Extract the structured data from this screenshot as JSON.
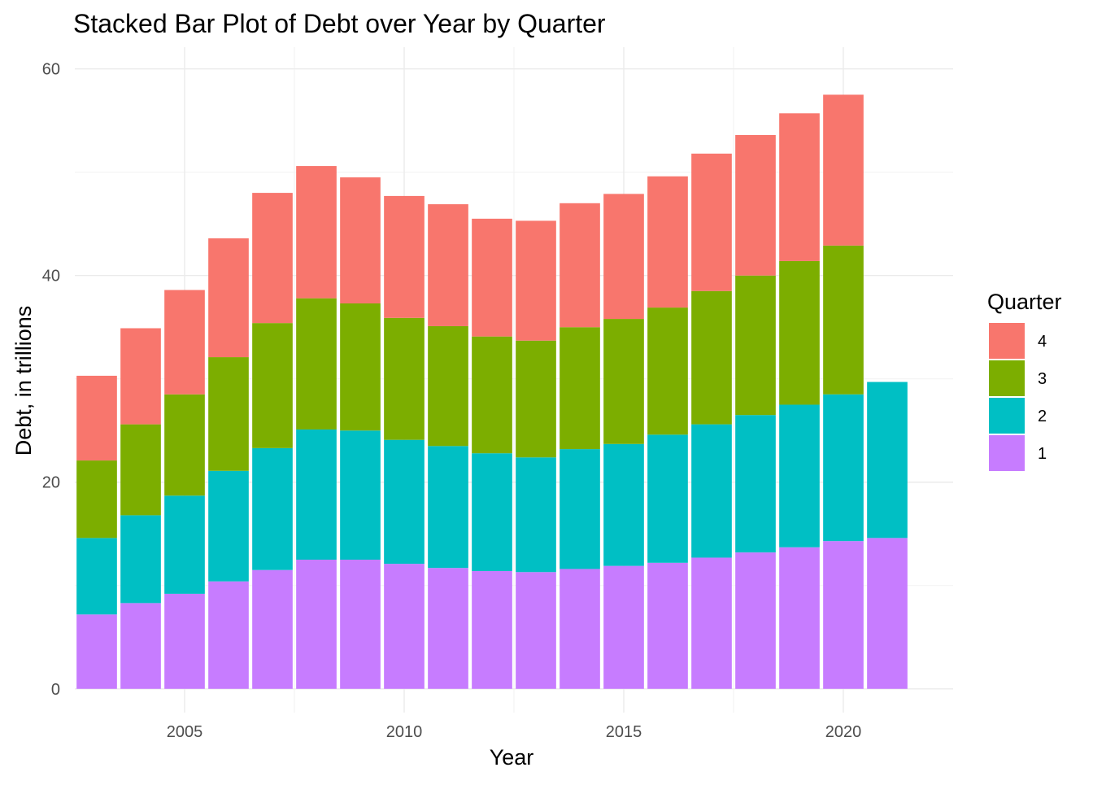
{
  "chart_data": {
    "type": "bar",
    "stacked": true,
    "title": "Stacked Bar Plot of Debt over Year by Quarter",
    "xlabel": "Year",
    "ylabel": "Debt, in trillions",
    "xlim": [
      2002.5,
      2022.5
    ],
    "ylim": [
      -2.3,
      62.1
    ],
    "x_ticks": [
      2005,
      2010,
      2015,
      2020
    ],
    "y_ticks": [
      0,
      20,
      40,
      60
    ],
    "grid": true,
    "legend": {
      "title": "Quarter",
      "position": "right"
    },
    "categories": [
      2003,
      2004,
      2005,
      2006,
      2007,
      2008,
      2009,
      2010,
      2011,
      2012,
      2013,
      2014,
      2015,
      2016,
      2017,
      2018,
      2019,
      2020,
      2021
    ],
    "series": [
      {
        "name": "1",
        "color": "#C77CFF",
        "values": [
          7.2,
          8.3,
          9.2,
          10.4,
          11.5,
          12.5,
          12.5,
          12.1,
          11.7,
          11.4,
          11.3,
          11.6,
          11.9,
          12.2,
          12.7,
          13.2,
          13.7,
          14.3,
          14.6
        ]
      },
      {
        "name": "2",
        "color": "#00BFC4",
        "values": [
          7.4,
          8.5,
          9.5,
          10.7,
          11.8,
          12.6,
          12.5,
          12.0,
          11.8,
          11.4,
          11.1,
          11.6,
          11.8,
          12.4,
          12.9,
          13.3,
          13.8,
          14.2,
          15.1
        ]
      },
      {
        "name": "3",
        "color": "#7CAE00",
        "values": [
          7.5,
          8.8,
          9.8,
          11.0,
          12.1,
          12.7,
          12.3,
          11.8,
          11.6,
          11.3,
          11.3,
          11.8,
          12.1,
          12.3,
          12.9,
          13.5,
          13.9,
          14.4,
          0
        ]
      },
      {
        "name": "4",
        "color": "#F8766D",
        "values": [
          8.2,
          9.3,
          10.1,
          11.5,
          12.6,
          12.8,
          12.2,
          11.8,
          11.8,
          11.4,
          11.6,
          12.0,
          12.1,
          12.7,
          13.3,
          13.6,
          14.3,
          14.6,
          0
        ]
      }
    ]
  }
}
